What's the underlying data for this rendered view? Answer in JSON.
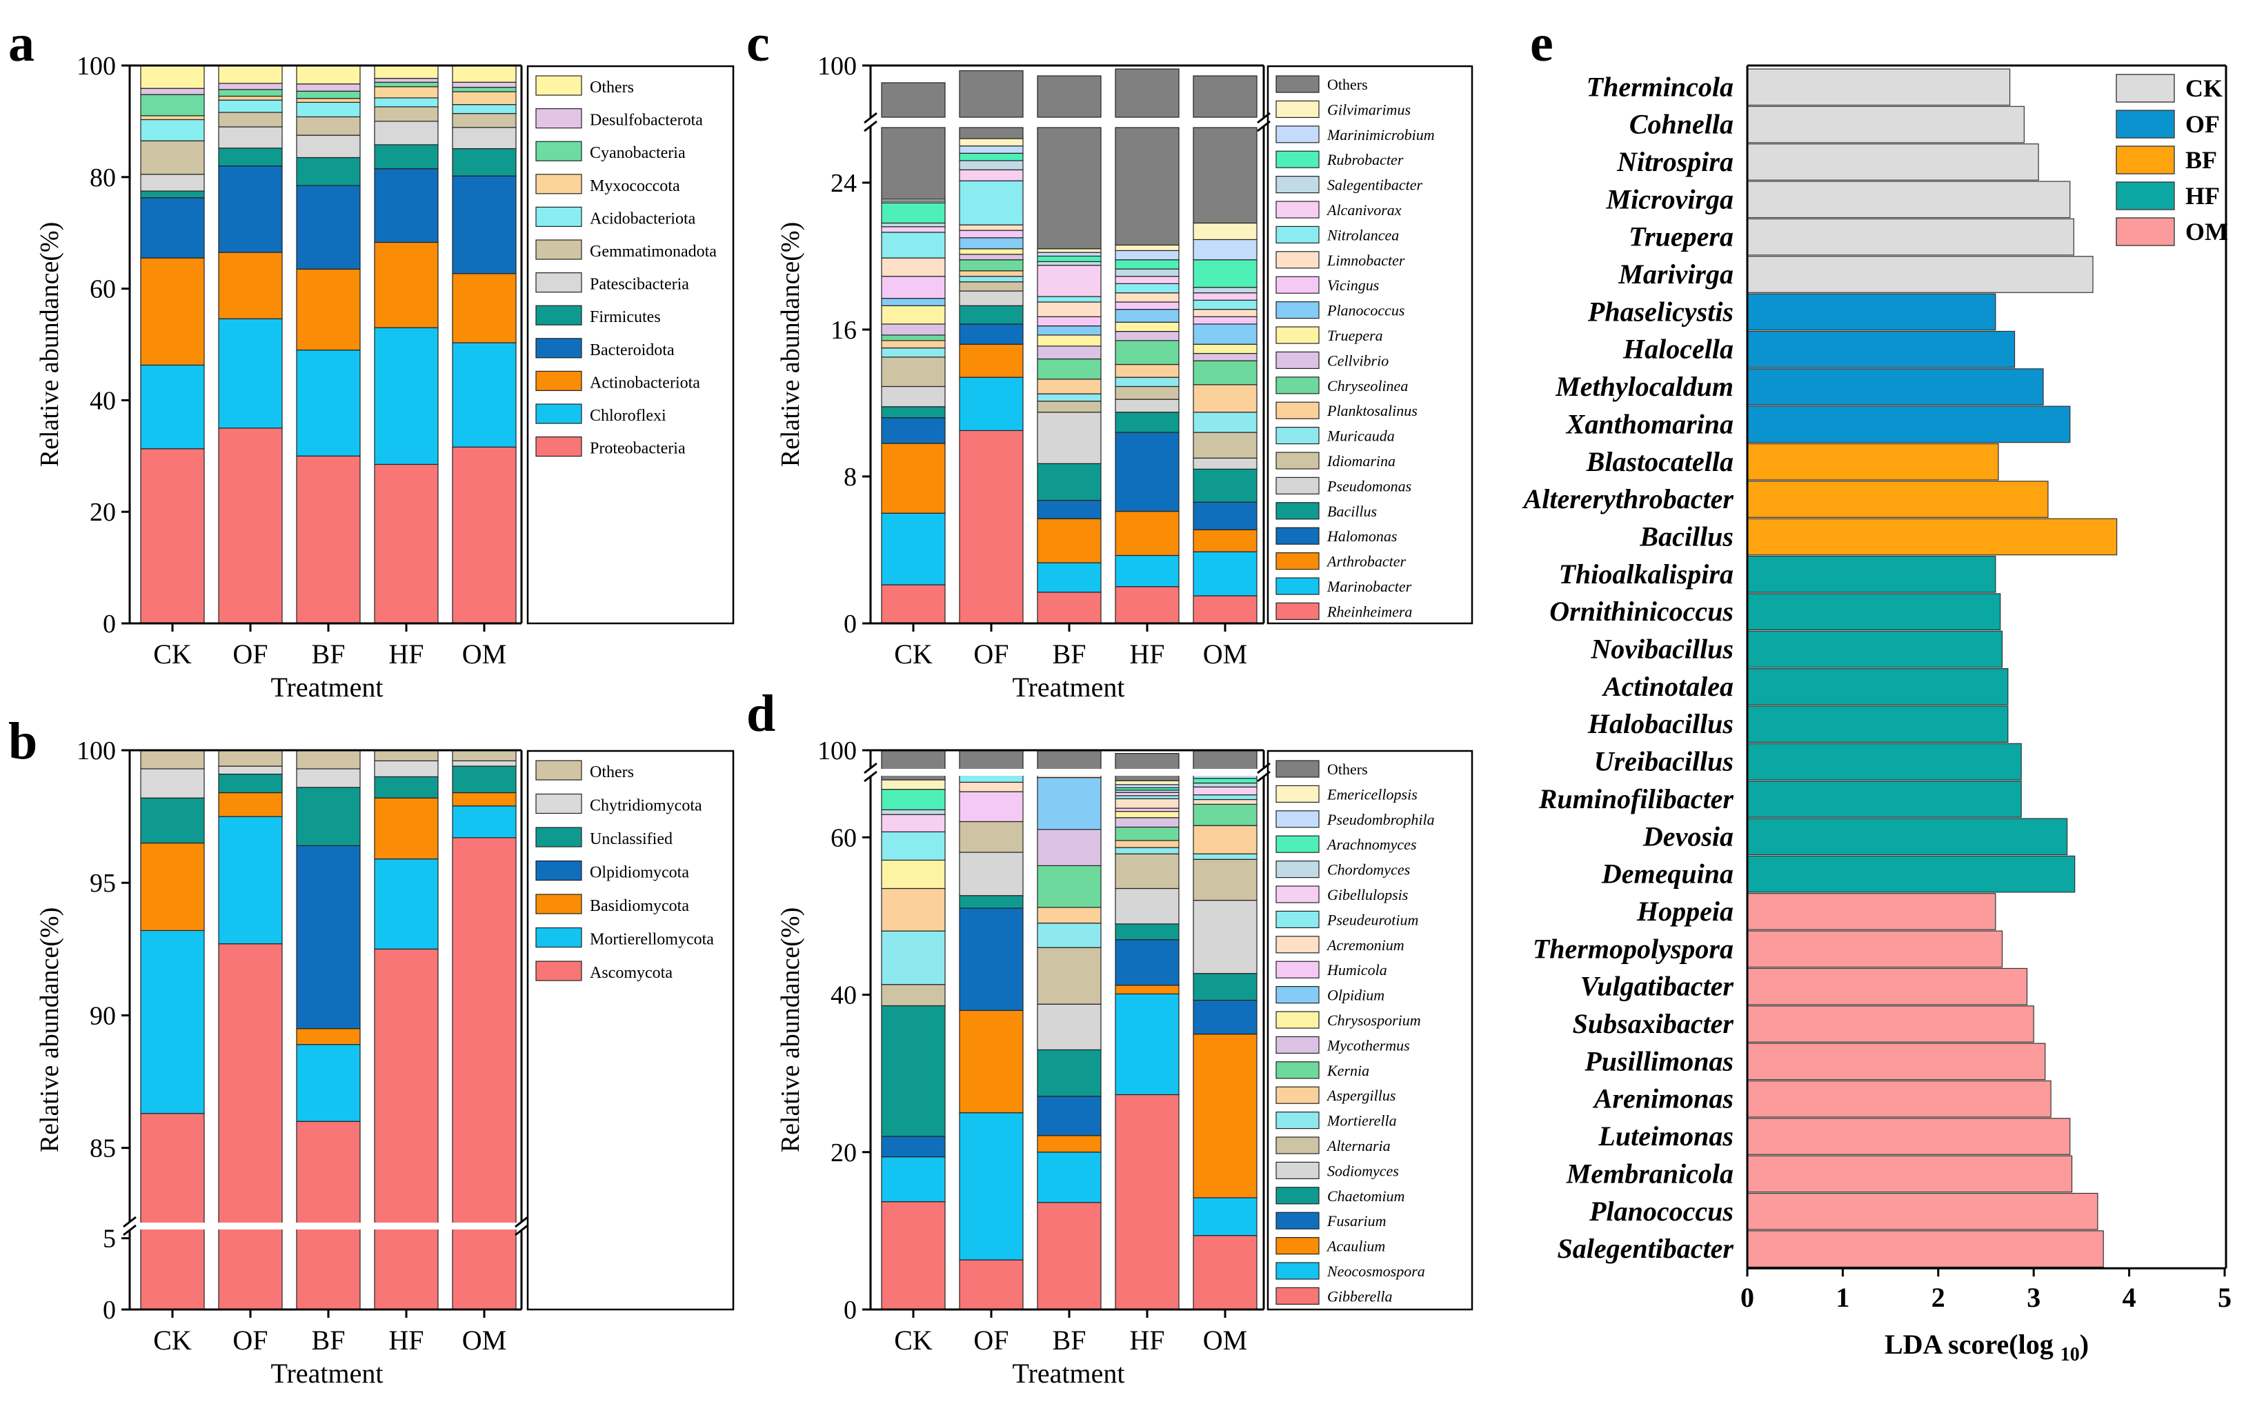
{
  "panels": {
    "a": {
      "letter": "a"
    },
    "b": {
      "letter": "b"
    },
    "c": {
      "letter": "c"
    },
    "d": {
      "letter": "d"
    },
    "e": {
      "letter": "e"
    }
  },
  "colors": {
    "a_taxa": {
      "Others": "#fff5a3",
      "Desulfobacterota": "#e3c4e6",
      "Cyanobacteria": "#6ddba2",
      "Myxococcota": "#fbd49a",
      "Acidobacteriota": "#89eef2",
      "Gemmatimonadota": "#cfc4a4",
      "Patescibacteria": "#d8d8d8",
      "Firmicutes": "#0f9a8f",
      "Bacteroidota": "#106fbc",
      "Actinobacteriota": "#fb8c06",
      "Chloroflexi": "#13c4f3",
      "Proteobacteria": "#f87676"
    },
    "b_taxa": {
      "Others": "#d1c4a4",
      "Chytridiomycota": "#dadada",
      "Unclassified": "#0f9a8f",
      "Olpidiomycota": "#106fbc",
      "Basidiomycota": "#fb8c06",
      "Mortierellomycota": "#13c4f3",
      "Ascomycota": "#f87676"
    },
    "c_taxa": {
      "Others": "#808080",
      "Gilvimarimus": "#fdf3c0",
      "Marinimicrobium": "#c4dcfb",
      "Rubrobacter": "#4ef0b8",
      "Salegentibacter": "#c1dbe6",
      "Alcanivorax": "#f7cff1",
      "Nitrolancea": "#8aecf0",
      "Limnobacter": "#fde0c6",
      "Vicingus": "#f5c9f6",
      "Planococcus": "#84cbf6",
      "Truepera": "#fdf3a3",
      "Cellvibrio": "#dcc3e5",
      "Chryseolinea": "#6dd99c",
      "Planktosalinus": "#fbd09a",
      "Muricauda": "#8ee9ef",
      "Idiomarina": "#cec4a4",
      "Pseudomonas": "#d6d6d6",
      "Bacillus": "#0f9a8f",
      "Halomonas": "#106fbc",
      "Arthrobacter": "#fb8c06",
      "Marinobacter": "#13c4f3",
      "Rheinheimera": "#f87676"
    },
    "d_taxa": {
      "Others": "#808080",
      "Emericellopsis": "#fdf3c0",
      "Pseudombrophila": "#c4dcfb",
      "Arachnomyces": "#4ef0b8",
      "Chordomyces": "#c1dbe6",
      "Gibellulopsis": "#f7cff1",
      "Pseudeurotium": "#8aecf0",
      "Acremonium": "#fde0c6",
      "Humicola": "#f5c9f6",
      "Olpidium": "#84cbf6",
      "Chrysosporium": "#fdf3a3",
      "Mycothermus": "#dcc3e5",
      "Kernia": "#6dd99c",
      "Aspergillus": "#fbd09a",
      "Mortierella": "#8ee9ef",
      "Alternaria": "#cec4a4",
      "Sodiomyces": "#d6d6d6",
      "Chaetomium": "#0f9a8f",
      "Fusarium": "#106fbc",
      "Acaulium": "#fb8c06",
      "Neocosmospora": "#13c4f3",
      "Gibberella": "#f87676"
    },
    "e_groups": {
      "CK": "#dcdcdc",
      "OF": "#0a93cf",
      "BF": "#ffa30f",
      "HF": "#0aa7a3",
      "OM": "#fb9b9b"
    }
  },
  "chart_data": [
    {
      "panel": "a",
      "type": "bar",
      "stacked": true,
      "categories": [
        "CK",
        "OF",
        "BF",
        "HF",
        "OM"
      ],
      "xlabel": "Treatment",
      "ylabel": "Relative abundance(%)",
      "ylim": [
        0,
        100
      ],
      "yticks": [
        0,
        20,
        40,
        60,
        80,
        100
      ],
      "legend": "right",
      "series": [
        {
          "name": "Proteobacteria",
          "values": [
            31.3,
            35.0,
            30.0,
            28.5,
            31.6
          ]
        },
        {
          "name": "Chloroflexi",
          "values": [
            15.0,
            19.6,
            19.0,
            24.5,
            18.7
          ]
        },
        {
          "name": "Actinobacteriota",
          "values": [
            19.2,
            11.9,
            14.5,
            15.3,
            12.4
          ]
        },
        {
          "name": "Bacteroidota",
          "values": [
            10.8,
            15.5,
            15.0,
            13.2,
            17.5
          ]
        },
        {
          "name": "Firmicutes",
          "values": [
            1.2,
            3.2,
            5.0,
            4.3,
            4.9
          ]
        },
        {
          "name": "Patescibacteria",
          "values": [
            3.0,
            3.8,
            4.0,
            4.2,
            3.8
          ]
        },
        {
          "name": "Gemmatimonadota",
          "values": [
            6.0,
            2.6,
            3.3,
            2.6,
            2.5
          ]
        },
        {
          "name": "Acidobacteriota",
          "values": [
            3.8,
            2.2,
            2.6,
            1.6,
            1.6
          ]
        },
        {
          "name": "Myxococcota",
          "values": [
            0.7,
            0.7,
            0.7,
            2.0,
            2.3
          ]
        },
        {
          "name": "Cyanobacteria",
          "values": [
            3.8,
            1.2,
            1.3,
            0.8,
            0.8
          ]
        },
        {
          "name": "Desulfobacterota",
          "values": [
            1.1,
            1.1,
            1.3,
            0.7,
            0.9
          ]
        },
        {
          "name": "Others",
          "values": [
            4.1,
            3.2,
            3.3,
            2.3,
            3.0
          ]
        }
      ]
    },
    {
      "panel": "b",
      "type": "bar",
      "stacked": true,
      "axis_break": {
        "lower": [
          0,
          6
        ],
        "upper": [
          82,
          100
        ]
      },
      "categories": [
        "CK",
        "OF",
        "BF",
        "HF",
        "OM"
      ],
      "xlabel": "Treatment",
      "ylabel": "Relative abundance(%)",
      "yticks": [
        0,
        5,
        85,
        90,
        95,
        100
      ],
      "legend": "right",
      "series": [
        {
          "name": "Ascomycota",
          "values": [
            86.3,
            92.7,
            86.0,
            92.5,
            96.7
          ]
        },
        {
          "name": "Mortierellomycota",
          "values": [
            6.9,
            4.8,
            2.9,
            3.4,
            1.2
          ]
        },
        {
          "name": "Basidiomycota",
          "values": [
            3.3,
            0.9,
            0.6,
            2.3,
            0.5
          ]
        },
        {
          "name": "Olpidiomycota",
          "values": [
            0.0,
            0.0,
            6.9,
            0.0,
            0.0
          ]
        },
        {
          "name": "Unclassified",
          "values": [
            1.7,
            0.7,
            2.2,
            0.8,
            1.0
          ]
        },
        {
          "name": "Chytridiomycota",
          "values": [
            1.1,
            0.3,
            0.7,
            0.6,
            0.2
          ]
        },
        {
          "name": "Others",
          "values": [
            0.7,
            0.6,
            0.7,
            0.4,
            0.4
          ]
        }
      ]
    },
    {
      "panel": "c",
      "type": "bar",
      "stacked": true,
      "axis_break": {
        "lower": [
          0,
          27
        ],
        "upper": [
          97,
          100
        ]
      },
      "categories": [
        "CK",
        "OF",
        "BF",
        "HF",
        "OM"
      ],
      "xlabel": "Treatment",
      "ylabel": "Relative abundance(%)",
      "yticks": [
        0,
        8,
        16,
        24,
        100
      ],
      "legend": "right",
      "series": [
        {
          "name": "Rheinheimera",
          "values": [
            2.1,
            10.5,
            1.7,
            2.0,
            1.5
          ]
        },
        {
          "name": "Marinobacter",
          "values": [
            3.9,
            2.9,
            1.6,
            1.7,
            2.4
          ]
        },
        {
          "name": "Arthrobacter",
          "values": [
            3.8,
            1.8,
            2.4,
            2.4,
            1.2
          ]
        },
        {
          "name": "Halomonas",
          "values": [
            1.4,
            1.1,
            1.0,
            4.3,
            1.5
          ]
        },
        {
          "name": "Bacillus",
          "values": [
            0.6,
            1.0,
            2.0,
            1.1,
            1.8
          ]
        },
        {
          "name": "Pseudomonas",
          "values": [
            1.1,
            0.8,
            2.8,
            0.7,
            0.6
          ]
        },
        {
          "name": "Idiomarina",
          "values": [
            1.6,
            0.5,
            0.6,
            0.7,
            1.4
          ]
        },
        {
          "name": "Muricauda",
          "values": [
            0.5,
            0.3,
            0.4,
            0.5,
            1.1
          ]
        },
        {
          "name": "Planktosalinus",
          "values": [
            0.4,
            0.3,
            0.8,
            0.7,
            1.5
          ]
        },
        {
          "name": "Chryseolinea",
          "values": [
            0.3,
            0.6,
            1.1,
            1.3,
            1.3
          ]
        },
        {
          "name": "Cellvibrio",
          "values": [
            0.6,
            0.3,
            0.7,
            0.5,
            0.4
          ]
        },
        {
          "name": "Truepera",
          "values": [
            1.0,
            0.3,
            0.6,
            0.5,
            0.5
          ]
        },
        {
          "name": "Planococcus",
          "values": [
            0.4,
            0.6,
            0.5,
            0.7,
            1.1
          ]
        },
        {
          "name": "Vicingus",
          "values": [
            1.2,
            0.4,
            0.5,
            0.4,
            0.4
          ]
        },
        {
          "name": "Limnobacter",
          "values": [
            1.0,
            0.3,
            0.8,
            0.5,
            0.4
          ]
        },
        {
          "name": "Nitrolancea",
          "values": [
            1.4,
            2.4,
            0.3,
            0.5,
            0.5
          ]
        },
        {
          "name": "Alcanivorax",
          "values": [
            0.3,
            0.6,
            1.7,
            0.4,
            0.4
          ]
        },
        {
          "name": "Salegentibacter",
          "values": [
            0.2,
            0.5,
            0.2,
            0.4,
            0.3
          ]
        },
        {
          "name": "Rubrobacter",
          "values": [
            1.1,
            0.4,
            0.3,
            0.5,
            1.5
          ]
        },
        {
          "name": "Marinimicrobium",
          "values": [
            0.1,
            0.4,
            0.2,
            0.5,
            1.1
          ]
        },
        {
          "name": "Gilvimarimus",
          "values": [
            0.1,
            0.4,
            0.2,
            0.3,
            0.9
          ]
        },
        {
          "name": "Others",
          "values": [
            75.9,
            73.3,
            79.0,
            79.2,
            77.6
          ]
        }
      ]
    },
    {
      "panel": "d",
      "type": "bar",
      "stacked": true,
      "axis_break": {
        "lower": [
          0,
          97
        ],
        "upper": [
          97,
          100
        ]
      },
      "categories": [
        "CK",
        "OF",
        "BF",
        "HF",
        "OM"
      ],
      "xlabel": "Treatment",
      "ylabel": "Relative abundance(%)",
      "yticks": [
        0,
        20,
        40,
        60,
        100
      ],
      "legend": "right",
      "series": [
        {
          "name": "Gibberella",
          "values": [
            13.7,
            6.3,
            13.6,
            27.3,
            9.4
          ]
        },
        {
          "name": "Neocosmospora",
          "values": [
            5.7,
            18.7,
            6.4,
            12.8,
            4.8
          ]
        },
        {
          "name": "Acaulium",
          "values": [
            0.0,
            13.0,
            2.1,
            1.1,
            20.8
          ]
        },
        {
          "name": "Fusarium",
          "values": [
            2.6,
            13.0,
            5.0,
            5.8,
            4.3
          ]
        },
        {
          "name": "Chaetomium",
          "values": [
            16.6,
            1.6,
            5.9,
            2.0,
            3.4
          ]
        },
        {
          "name": "Sodiomyces",
          "values": [
            0.0,
            5.5,
            5.8,
            4.5,
            9.3
          ]
        },
        {
          "name": "Alternaria",
          "values": [
            2.7,
            3.9,
            7.2,
            4.4,
            5.2
          ]
        },
        {
          "name": "Mortierella",
          "values": [
            6.8,
            0.0,
            3.1,
            0.8,
            0.7
          ]
        },
        {
          "name": "Aspergillus",
          "values": [
            5.4,
            0.0,
            2.0,
            0.9,
            3.6
          ]
        },
        {
          "name": "Kernia",
          "values": [
            0.0,
            0.0,
            5.3,
            1.7,
            2.7
          ]
        },
        {
          "name": "Mycothermus",
          "values": [
            0.0,
            0.0,
            4.6,
            1.2,
            0.0
          ]
        },
        {
          "name": "Chrysosporium",
          "values": [
            3.6,
            0.0,
            0.0,
            0.8,
            0.0
          ]
        },
        {
          "name": "Olpidium",
          "values": [
            0.0,
            0.0,
            6.6,
            0.0,
            0.0
          ]
        },
        {
          "name": "Humicola",
          "values": [
            0.0,
            3.8,
            0.0,
            0.4,
            0.0
          ]
        },
        {
          "name": "Acremonium",
          "values": [
            0.0,
            1.2,
            0.8,
            1.2,
            0.6
          ]
        },
        {
          "name": "Pseudeurotium",
          "values": [
            3.6,
            1.2,
            0.7,
            0.4,
            0.6
          ]
        },
        {
          "name": "Gibellulopsis",
          "values": [
            2.2,
            1.1,
            0.5,
            0.4,
            1.0
          ]
        },
        {
          "name": "Chordomyces",
          "values": [
            0.6,
            0.5,
            0.4,
            0.3,
            0.5
          ]
        },
        {
          "name": "Arachnomyces",
          "values": [
            2.6,
            1.2,
            0.4,
            0.3,
            0.6
          ]
        },
        {
          "name": "Pseudombrophila",
          "values": [
            0.0,
            0.6,
            0.3,
            0.4,
            0.4
          ]
        },
        {
          "name": "Emericellopsis",
          "values": [
            1.2,
            0.7,
            0.3,
            0.5,
            0.6
          ]
        },
        {
          "name": "Others",
          "values": [
            33.0,
            28.7,
            29.0,
            32.3,
            32.0
          ]
        }
      ]
    },
    {
      "panel": "e",
      "type": "bar",
      "orientation": "horizontal",
      "title": "",
      "xlabel": "LDA score(log",
      "xlabel_sub": "10",
      "xlabel_end": ")",
      "xlim": [
        0,
        5
      ],
      "xticks": [
        0,
        1,
        2,
        3,
        4,
        5
      ],
      "legend": "top-right",
      "groups": [
        "CK",
        "OF",
        "BF",
        "HF",
        "OM"
      ],
      "categories": [
        "Thermincola",
        "Cohnella",
        "Nitrospira",
        "Microvirga",
        "Truepera",
        "Marivirga",
        "Phaselicystis",
        "Halocella",
        "Methylocaldum",
        "Xanthomarina",
        "Blastocatella",
        "Altererythrobacter",
        "Bacillus",
        "Thioalkalispira",
        "Ornithinicoccus",
        "Novibacillus",
        "Actinotalea",
        "Halobacillus",
        "Ureibacillus",
        "Ruminofilibacter",
        "Devosia",
        "Demequina",
        "Hoppeia",
        "Thermopolyspora",
        "Vulgatibacter",
        "Subsaxibacter",
        "Pusillimonas",
        "Arenimonas",
        "Luteimonas",
        "Membranicola",
        "Planococcus",
        "Salegentibacter"
      ],
      "values": [
        2.75,
        2.9,
        3.05,
        3.38,
        3.42,
        3.62,
        2.6,
        2.8,
        3.1,
        3.38,
        2.63,
        3.15,
        3.87,
        2.6,
        2.65,
        2.67,
        2.73,
        2.73,
        2.87,
        2.87,
        3.35,
        3.43,
        2.6,
        2.67,
        2.93,
        3.0,
        3.12,
        3.18,
        3.38,
        3.4,
        3.67,
        3.73
      ],
      "group_of": [
        "CK",
        "CK",
        "CK",
        "CK",
        "CK",
        "CK",
        "OF",
        "OF",
        "OF",
        "OF",
        "BF",
        "BF",
        "BF",
        "HF",
        "HF",
        "HF",
        "HF",
        "HF",
        "HF",
        "HF",
        "HF",
        "HF",
        "OM",
        "OM",
        "OM",
        "OM",
        "OM",
        "OM",
        "OM",
        "OM",
        "OM",
        "OM"
      ]
    }
  ]
}
